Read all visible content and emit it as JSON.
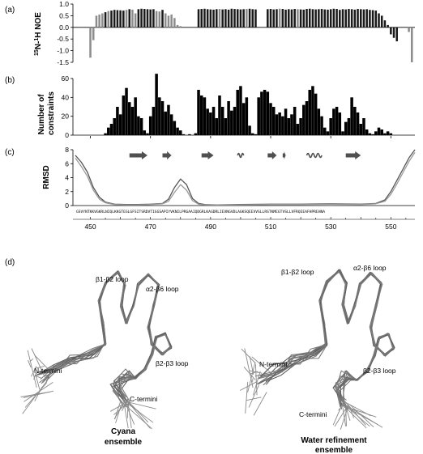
{
  "panels": {
    "a": {
      "label": "(a)"
    },
    "b": {
      "label": "(b)"
    },
    "c": {
      "label": "(c)"
    },
    "d": {
      "label": "(d)"
    }
  },
  "chart_data": [
    {
      "type": "bar",
      "panel": "a",
      "ylabel": "15N-1H NOE",
      "ylabel_parts": {
        "sup1": "15",
        "mid": "N-",
        "sup2": "1",
        "end": "H NOE"
      },
      "ylim": [
        -1.5,
        1.0
      ],
      "yticks": [
        "1.0",
        "0.5",
        "0.0",
        "-0.5",
        "-1.0",
        "-1.5"
      ],
      "ytick_values": [
        1.0,
        0.5,
        0.0,
        -0.5,
        -1.0,
        -1.5
      ],
      "xlim": [
        445,
        558
      ],
      "colors": {
        "dark": "#1a1a1a",
        "light": "#8c8c8c"
      },
      "residues": [
        450,
        451,
        452,
        453,
        454,
        455,
        456,
        457,
        458,
        459,
        460,
        461,
        462,
        463,
        464,
        465,
        466,
        467,
        468,
        469,
        470,
        471,
        472,
        473,
        474,
        475,
        476,
        477,
        478,
        479,
        480,
        481,
        482,
        483,
        484,
        485,
        486,
        487,
        488,
        489,
        490,
        491,
        492,
        493,
        494,
        495,
        496,
        497,
        498,
        499,
        500,
        501,
        502,
        503,
        504,
        505,
        506,
        507,
        508,
        509,
        510,
        511,
        512,
        513,
        514,
        515,
        516,
        517,
        518,
        519,
        520,
        521,
        522,
        523,
        524,
        525,
        526,
        527,
        528,
        529,
        530,
        531,
        532,
        533,
        534,
        535,
        536,
        537,
        538,
        539,
        540,
        541,
        542,
        543,
        544,
        545,
        546,
        547,
        548,
        549,
        550,
        551,
        552,
        553,
        554,
        555,
        556,
        557
      ],
      "values": [
        -1.3,
        -0.55,
        0.5,
        0.55,
        0.6,
        0.65,
        0.7,
        0.72,
        0.75,
        0.74,
        0.73,
        0.72,
        0.75,
        0.78,
        0.76,
        0.6,
        0.78,
        0.8,
        0.79,
        0.78,
        0.77,
        0.78,
        0.7,
        0.68,
        0.75,
        0.6,
        0.5,
        0.55,
        0.4,
        0.1,
        0.05,
        0,
        0,
        0,
        0,
        0,
        0.78,
        0.79,
        0.8,
        0.78,
        0.77,
        0.76,
        0.78,
        0.79,
        0.77,
        0.78,
        0.76,
        0.8,
        0.79,
        0.78,
        0.77,
        0.78,
        0.79,
        0.8,
        0.78,
        0.77,
        0,
        0,
        0,
        0.78,
        0.79,
        0.77,
        0.78,
        0.8,
        0.79,
        0.76,
        0.78,
        0.77,
        0.79,
        0.78,
        0.77,
        0.76,
        0.79,
        0.8,
        0.78,
        0.77,
        0.78,
        0.79,
        0.77,
        0.76,
        0.78,
        0.8,
        0.79,
        0.75,
        0.78,
        0.77,
        0.79,
        0.78,
        0.76,
        0.79,
        0.78,
        0.77,
        0.78,
        0.75,
        0.74,
        0.72,
        0.6,
        0.5,
        0.3,
        0.1,
        -0.3,
        -0.45,
        -0.6,
        0,
        0,
        0,
        -0.2,
        -1.5
      ],
      "shade": [
        "light",
        "light",
        "light",
        "light",
        "light",
        "dark",
        "light",
        "dark",
        "dark",
        "dark",
        "dark",
        "dark",
        "light",
        "dark",
        "light",
        "light",
        "dark",
        "dark",
        "dark",
        "dark",
        "dark",
        "dark",
        "light",
        "light",
        "dark",
        "light",
        "light",
        "light",
        "light",
        "light",
        "light",
        "light",
        "light",
        "light",
        "light",
        "light",
        "dark",
        "dark",
        "dark",
        "dark",
        "dark",
        "dark",
        "dark",
        "light",
        "dark",
        "dark",
        "dark",
        "dark",
        "dark",
        "dark",
        "dark",
        "dark",
        "light",
        "dark",
        "dark",
        "dark",
        "dark",
        "dark",
        "dark",
        "dark",
        "dark",
        "dark",
        "dark",
        "light",
        "dark",
        "dark",
        "dark",
        "dark",
        "dark",
        "light",
        "dark",
        "dark",
        "dark",
        "dark",
        "dark",
        "dark",
        "dark",
        "dark",
        "dark",
        "dark",
        "dark",
        "dark",
        "dark",
        "dark",
        "dark",
        "dark",
        "dark",
        "dark",
        "dark",
        "dark",
        "dark",
        "dark",
        "dark",
        "dark",
        "dark",
        "dark",
        "dark",
        "dark",
        "dark",
        "dark",
        "dark",
        "dark",
        "dark",
        "dark",
        "light",
        "light",
        "light",
        "light",
        "light",
        "light",
        "light",
        "light",
        "light"
      ]
    },
    {
      "type": "bar",
      "panel": "b",
      "ylabel": "Number of constraints",
      "ylabel_lines": [
        "Number of",
        "constraints"
      ],
      "ylim": [
        0,
        60
      ],
      "yticks": [
        "60",
        "40",
        "20",
        "0"
      ],
      "ytick_values": [
        60,
        40,
        20,
        0
      ],
      "xlim": [
        445,
        558
      ],
      "color": "#000000",
      "residues": [
        455,
        456,
        457,
        458,
        459,
        460,
        461,
        462,
        463,
        464,
        465,
        466,
        467,
        468,
        469,
        470,
        471,
        472,
        473,
        474,
        475,
        476,
        477,
        478,
        479,
        480,
        481,
        482,
        483,
        484,
        485,
        486,
        487,
        488,
        489,
        490,
        491,
        492,
        493,
        494,
        495,
        496,
        497,
        498,
        499,
        500,
        501,
        502,
        503,
        504,
        505,
        506,
        507,
        508,
        509,
        510,
        511,
        512,
        513,
        514,
        515,
        516,
        517,
        518,
        519,
        520,
        521,
        522,
        523,
        524,
        525,
        526,
        527,
        528,
        529,
        530,
        531,
        532,
        533,
        534,
        535,
        536,
        537,
        538,
        539,
        540,
        541,
        542,
        543,
        544,
        545,
        546,
        547,
        548,
        549,
        550,
        551,
        552,
        553,
        554,
        555,
        556,
        557
      ],
      "values": [
        2,
        8,
        12,
        18,
        30,
        22,
        42,
        50,
        35,
        30,
        40,
        20,
        18,
        5,
        2,
        20,
        30,
        65,
        40,
        36,
        25,
        32,
        22,
        15,
        8,
        5,
        1,
        0,
        1,
        0,
        2,
        48,
        42,
        40,
        28,
        24,
        30,
        18,
        42,
        30,
        18,
        36,
        26,
        30,
        48,
        52,
        34,
        40,
        10,
        2,
        1,
        40,
        46,
        48,
        46,
        34,
        30,
        22,
        24,
        20,
        28,
        18,
        22,
        30,
        12,
        18,
        32,
        36,
        48,
        52,
        44,
        28,
        20,
        8,
        4,
        18,
        28,
        30,
        24,
        4,
        14,
        18,
        40,
        30,
        24,
        12,
        18,
        6,
        2,
        1,
        4,
        8,
        6,
        2,
        4,
        2,
        0,
        0,
        0,
        0,
        0,
        0,
        0
      ]
    },
    {
      "type": "line",
      "panel": "c",
      "ylabel": "RMSD",
      "ylim": [
        0,
        8
      ],
      "yticks": [
        "8",
        "6",
        "4",
        "2",
        "0"
      ],
      "ytick_values": [
        8,
        6,
        4,
        2,
        0
      ],
      "xlim": [
        445,
        558
      ],
      "xticks": [
        "450",
        "470",
        "490",
        "510",
        "530",
        "550"
      ],
      "xtick_values": [
        450,
        470,
        490,
        510,
        530,
        550
      ],
      "sequence": "GSVYNTKKVGKRLNIQLKKGTEGLGFSITSRDVTIGGSAPIYVKNILPRGAAIQDGRLKAGDRLIEVNGVDLAGKSQEEVVSLLRSTKMEGTVSLLVFRQEEAFHPREHNA",
      "series": [
        {
          "color": "#555555",
          "x": [
            445,
            447,
            449,
            451,
            453,
            455,
            458,
            462,
            466,
            470,
            474,
            476,
            478,
            480,
            482,
            484,
            486,
            488,
            492,
            500,
            510,
            520,
            530,
            540,
            545,
            548,
            550,
            552,
            554,
            556,
            558
          ],
          "y": [
            7.2,
            6.2,
            4.8,
            2.6,
            1.2,
            0.5,
            0.2,
            0.15,
            0.15,
            0.2,
            0.3,
            0.9,
            2.6,
            3.8,
            3.0,
            1.0,
            0.3,
            0.15,
            0.1,
            0.15,
            0.2,
            0.2,
            0.25,
            0.2,
            0.3,
            0.8,
            2.0,
            3.6,
            5.2,
            6.8,
            8.0
          ]
        },
        {
          "color": "#9a9a9a",
          "x": [
            445,
            447,
            449,
            451,
            453,
            455,
            458,
            462,
            466,
            470,
            474,
            476,
            478,
            480,
            482,
            484,
            486,
            488,
            492,
            500,
            510,
            520,
            530,
            540,
            545,
            548,
            550,
            552,
            554,
            556,
            558
          ],
          "y": [
            6.8,
            5.6,
            4.2,
            2.2,
            0.9,
            0.4,
            0.15,
            0.1,
            0.1,
            0.15,
            0.25,
            0.6,
            1.9,
            3.0,
            2.2,
            0.7,
            0.2,
            0.1,
            0.08,
            0.1,
            0.15,
            0.15,
            0.2,
            0.15,
            0.25,
            0.6,
            1.6,
            3.1,
            4.7,
            6.3,
            7.6
          ]
        }
      ]
    }
  ],
  "secondary_structure": [
    {
      "type": "strand",
      "start": 463,
      "end": 469
    },
    {
      "type": "strand",
      "start": 474,
      "end": 477
    },
    {
      "type": "strand",
      "start": 487,
      "end": 491
    },
    {
      "type": "helix",
      "start": 499,
      "end": 501
    },
    {
      "type": "strand",
      "start": 509,
      "end": 512
    },
    {
      "type": "strand",
      "start": 514,
      "end": 515
    },
    {
      "type": "helix",
      "start": 522,
      "end": 527
    },
    {
      "type": "strand",
      "start": 535,
      "end": 540
    }
  ],
  "ensembles": {
    "left": {
      "caption_lines": [
        "Cyana",
        "ensemble"
      ],
      "labels": {
        "b1b2": "β1-β2 loop",
        "a2b6": "α2-β6 loop",
        "b2b3": "β2-β3 loop",
        "nterm": "N-termini",
        "cterm": "C-termini"
      }
    },
    "right": {
      "caption_lines": [
        "Water  refinement",
        "ensemble"
      ],
      "labels": {
        "b1b2": "β1-β2 loop",
        "a2b6": "α2-β6 loop",
        "b2b3": "β2-β3 loop",
        "nterm": "N-termini",
        "cterm": "C-termini"
      }
    }
  }
}
